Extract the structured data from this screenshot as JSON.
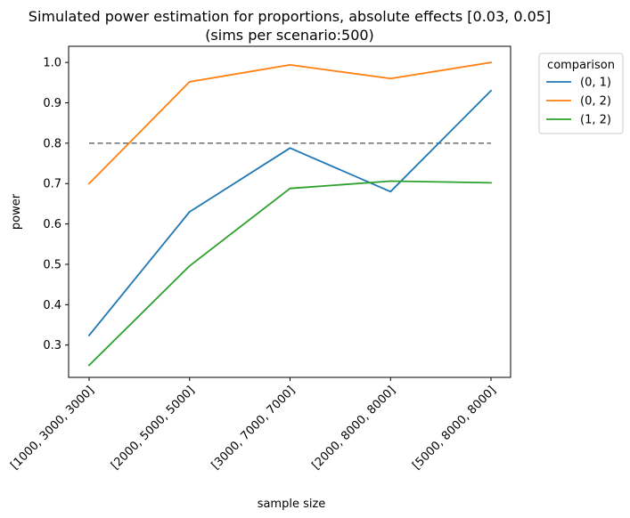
{
  "chart_data": {
    "type": "line",
    "title": "Simulated power estimation for proportions, absolute effects [0.03, 0.05]",
    "subtitle": "(sims per scenario:500)",
    "xlabel": "sample size",
    "ylabel": "power",
    "categories": [
      "[1000, 3000, 3000]",
      "[2000, 5000, 5000]",
      "[3000, 7000, 7000]",
      "[2000, 8000, 8000]",
      "[5000, 8000, 8000]"
    ],
    "ylim": [
      0.22,
      1.04
    ],
    "yticks": [
      0.3,
      0.4,
      0.5,
      0.6,
      0.7,
      0.8,
      0.9,
      1.0
    ],
    "ytick_labels": [
      "0.3",
      "0.4",
      "0.5",
      "0.6",
      "0.7",
      "0.8",
      "0.9",
      "1.0"
    ],
    "reference_line": {
      "value": 0.8,
      "style": "dashed",
      "color": "#808080"
    },
    "legend": {
      "title": "comparison",
      "placement": "outside-top-right"
    },
    "series": [
      {
        "name": "(0, 1)",
        "color": "#1f77b4",
        "values": [
          0.324,
          0.63,
          0.788,
          0.68,
          0.93
        ]
      },
      {
        "name": "(0, 2)",
        "color": "#ff7f0e",
        "values": [
          0.7,
          0.952,
          0.994,
          0.96,
          1.0
        ]
      },
      {
        "name": "(1, 2)",
        "color": "#2ca02c",
        "values": [
          0.25,
          0.496,
          0.688,
          0.706,
          0.702
        ]
      }
    ]
  }
}
